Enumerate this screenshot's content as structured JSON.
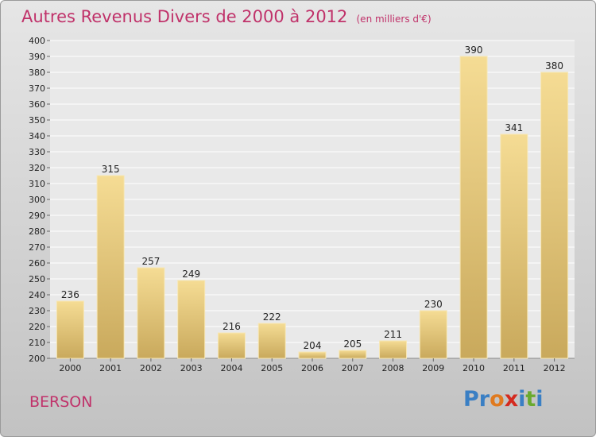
{
  "header": {
    "title": "Autres Revenus Divers de 2000 à 2012",
    "unit_note": "(en milliers d'€)"
  },
  "footer": {
    "place": "BERSON",
    "logo": {
      "segments": [
        "P",
        "r",
        "o",
        "x",
        "i",
        "t",
        "i"
      ],
      "colors": [
        "#3a7fc4",
        "#3a7fc4",
        "#e07a1f",
        "#d42a1f",
        "#3a7fc4",
        "#6aaa2f",
        "#3a7fc4"
      ]
    }
  },
  "chart_data": {
    "type": "bar",
    "title": "Autres Revenus Divers de 2000 à 2012",
    "categories": [
      "2000",
      "2001",
      "2002",
      "2003",
      "2004",
      "2005",
      "2006",
      "2007",
      "2008",
      "2009",
      "2010",
      "2011",
      "2012"
    ],
    "values": [
      236,
      315,
      257,
      249,
      216,
      222,
      204,
      205,
      211,
      230,
      390,
      341,
      380
    ],
    "ylim": [
      200,
      400
    ],
    "yticks": [
      200,
      210,
      220,
      230,
      240,
      250,
      260,
      270,
      280,
      290,
      300,
      310,
      320,
      330,
      340,
      350,
      360,
      370,
      380,
      390,
      400
    ],
    "grid": true,
    "bar_color_light": "#f5dc94",
    "bar_color_dark": "#c9a95c"
  }
}
